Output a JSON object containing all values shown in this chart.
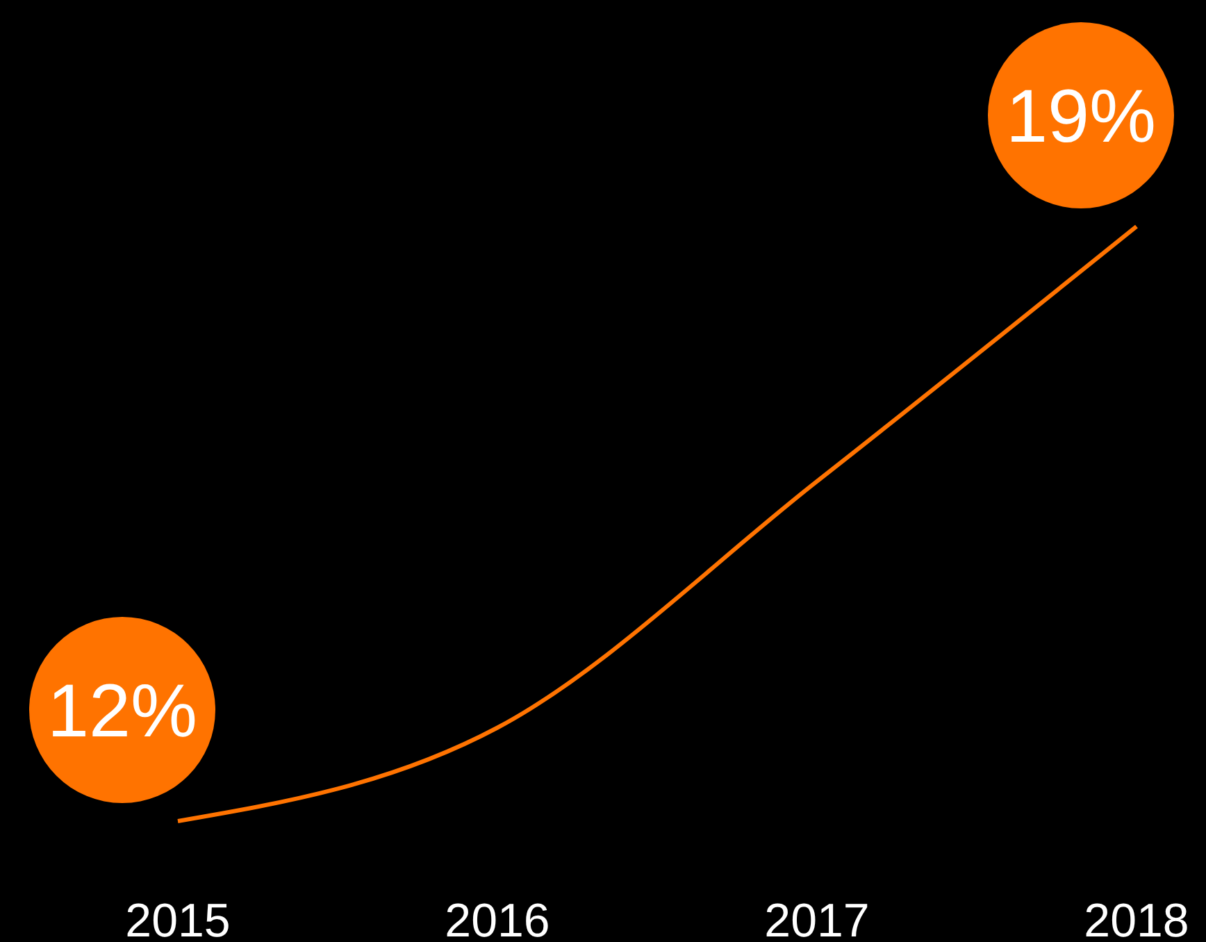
{
  "chart_data": {
    "type": "line",
    "categories": [
      "2015",
      "2016",
      "2017",
      "2018"
    ],
    "series": [
      {
        "color": "#ff7300",
        "values": [
          12,
          13.1,
          16,
          19
        ],
        "value_labels": [
          "12%",
          null,
          null,
          "19%"
        ]
      }
    ],
    "marker": "none",
    "tick_labels": "x"
  }
}
